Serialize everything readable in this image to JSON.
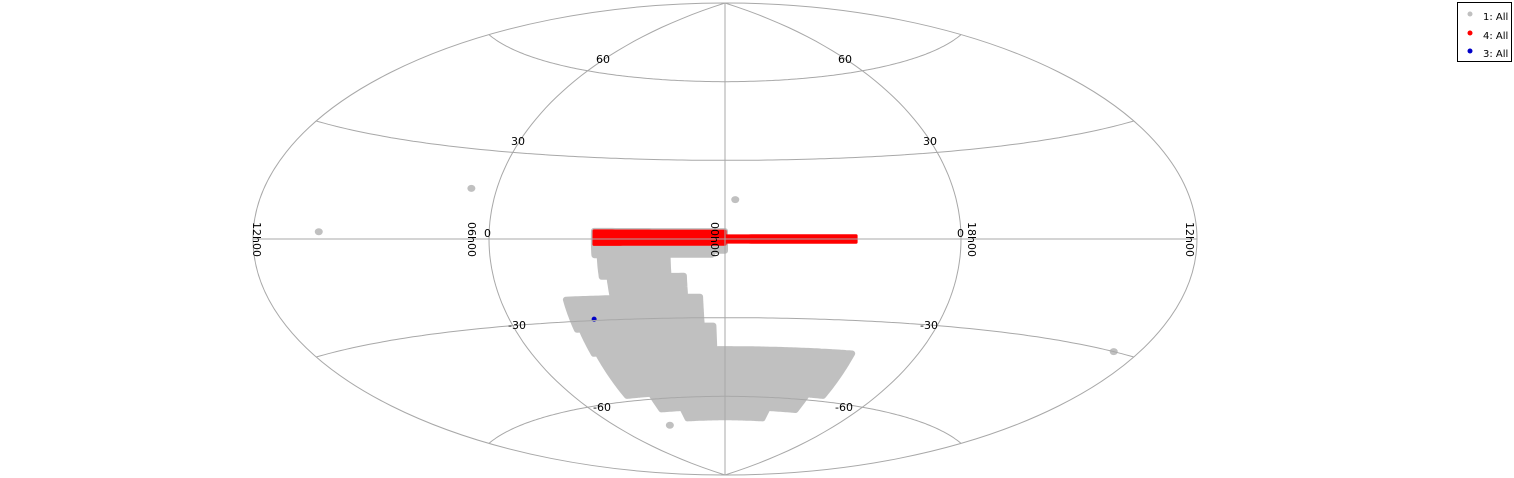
{
  "chart_data": {
    "type": "scatter",
    "projection": "aitoff",
    "ra_tick_labels": [
      "12h00",
      "06h00",
      "00h00",
      "18h00",
      "12h00"
    ],
    "dec_tick_labels": [
      "60",
      "30",
      "0",
      "-30",
      "-60"
    ],
    "grid": true,
    "legend_position": "top-right",
    "colors": {
      "grid": "#a8a8a8",
      "series_1": "#c0c0c0",
      "series_4": "#ff0000",
      "series_3": "#0000c8"
    },
    "series": [
      {
        "name": "1: All",
        "color": "#c0c0c0",
        "regions": [
          {
            "ra_deg": [
              -5,
              0
            ],
            "dec_deg": [
              -4.5,
              3
            ]
          },
          {
            "ra_deg": [
              -50,
              -5
            ],
            "dec_deg": [
              -6,
              3
            ]
          },
          {
            "ra_deg": [
              -48,
              -22
            ],
            "dec_deg": [
              -14,
              -6
            ]
          },
          {
            "ra_deg": [
              -45,
              -16
            ],
            "dec_deg": [
              -22,
              -14
            ]
          },
          {
            "ra_deg": [
              -64,
              -10
            ],
            "dec_deg": [
              -33,
              -22
            ]
          },
          {
            "ra_deg": [
              -62,
              -5
            ],
            "dec_deg": [
              -42,
              -33
            ]
          },
          {
            "ra_deg": [
              -60,
              60
            ],
            "dec_deg": [
              -58,
              -42
            ]
          },
          {
            "ra_deg": [
              -45,
              50
            ],
            "dec_deg": [
              -64,
              -58
            ]
          },
          {
            "ra_deg": [
              -30,
              30
            ],
            "dec_deg": [
              -68,
              -64
            ]
          }
        ],
        "points": [
          {
            "ra_deg": -100,
            "dec_deg": 17
          },
          {
            "ra_deg": 4,
            "dec_deg": 15
          },
          {
            "ra_deg": -155,
            "dec_deg": 2
          },
          {
            "ra_deg": 170,
            "dec_deg": -30
          },
          {
            "ra_deg": -48,
            "dec_deg": -70
          }
        ]
      },
      {
        "name": "4: All",
        "color": "#ff0000",
        "regions": [
          {
            "ra_deg": -50,
            "dec_deg_range": [
              -2,
              3
            ],
            "ra_end_deg": 0
          },
          {
            "ra_deg": 0,
            "dec_deg_range": [
              -1.2,
              1.2
            ],
            "ra_end_deg": 50
          }
        ]
      },
      {
        "name": "3: All",
        "color": "#0000c8",
        "points": [
          {
            "ra_deg": -55,
            "dec_deg": -29.5
          }
        ]
      }
    ]
  },
  "legend": {
    "items": [
      {
        "label": "1: All",
        "color": "#c0c0c0"
      },
      {
        "label": "4: All",
        "color": "#ff0000"
      },
      {
        "label": "3: All",
        "color": "#0000c8"
      }
    ]
  }
}
